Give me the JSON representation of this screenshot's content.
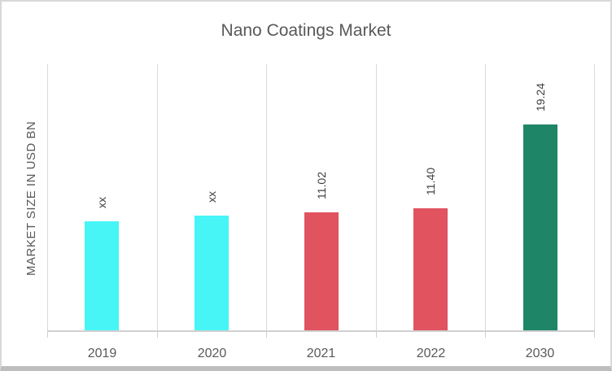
{
  "chart_data": {
    "type": "bar",
    "title": "Nano Coatings Market",
    "xlabel": "",
    "ylabel": "MARKET SIZE IN USD BN",
    "categories": [
      "2019",
      "2020",
      "2021",
      "2022",
      "2030"
    ],
    "values": [
      10.2,
      10.7,
      11.02,
      11.4,
      19.24
    ],
    "data_labels": [
      "xx",
      "xx",
      "11.02",
      "11.40",
      "19.24"
    ],
    "values_estimated_from_bar_height": [
      true,
      true,
      false,
      false,
      false
    ],
    "bar_colors": [
      "#47F5F7",
      "#47F5F7",
      "#E0535F",
      "#E0535F",
      "#1E8567"
    ],
    "ylim": [
      0,
      25
    ],
    "y_axis_ticks_visible": false,
    "gridlines": "vertical-category-boundaries",
    "legend": "none",
    "data_label_rotation_degrees": 90,
    "colors": {
      "title_text": "#595959",
      "axis_text": "#595959",
      "data_label_text": "#404040",
      "gridline": "#d9d9d9",
      "axis_line": "#d0d0d0",
      "chart_border": "#d8d8d8",
      "background": "#ffffff"
    }
  }
}
